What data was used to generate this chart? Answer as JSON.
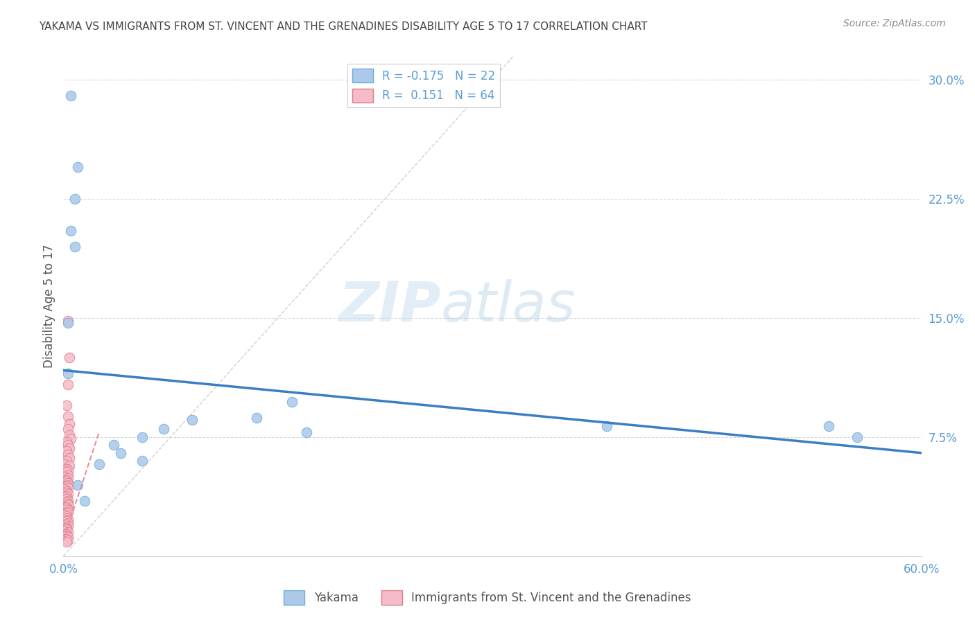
{
  "title": "YAKAMA VS IMMIGRANTS FROM ST. VINCENT AND THE GRENADINES DISABILITY AGE 5 TO 17 CORRELATION CHART",
  "source": "Source: ZipAtlas.com",
  "ylabel": "Disability Age 5 to 17",
  "watermark_zip": "ZIP",
  "watermark_atlas": "atlas",
  "xlim": [
    0.0,
    0.6
  ],
  "ylim": [
    0.0,
    0.315
  ],
  "xticks": [
    0.0,
    0.1,
    0.2,
    0.3,
    0.4,
    0.5,
    0.6
  ],
  "xticklabels": [
    "0.0%",
    "",
    "",
    "",
    "",
    "",
    "60.0%"
  ],
  "yticks_right": [
    0.075,
    0.15,
    0.225,
    0.3
  ],
  "yticklabels_right": [
    "7.5%",
    "15.0%",
    "22.5%",
    "30.0%"
  ],
  "legend_label1": "R = -0.175   N = 22",
  "legend_label2": "R =  0.151   N = 64",
  "series1_label": "Yakama",
  "series2_label": "Immigrants from St. Vincent and the Grenadines",
  "series1_color": "#adc9ea",
  "series2_color": "#f5bbc8",
  "series1_edge_color": "#6aaed6",
  "series2_edge_color": "#e07b8a",
  "trendline1_color": "#3a7fc1",
  "trendline2_color": "#e8919e",
  "diagonal_color": "#d0d0d0",
  "grid_color": "#d8d8d8",
  "title_color": "#444444",
  "axis_label_color": "#5b9bd5",
  "source_color": "#888888",
  "yakama_x": [
    0.005,
    0.01,
    0.008,
    0.005,
    0.008,
    0.003,
    0.003,
    0.16,
    0.135,
    0.38,
    0.535,
    0.555,
    0.17,
    0.09,
    0.055,
    0.04,
    0.025,
    0.035,
    0.055,
    0.07,
    0.01,
    0.015
  ],
  "yakama_y": [
    0.29,
    0.245,
    0.225,
    0.205,
    0.195,
    0.147,
    0.115,
    0.097,
    0.087,
    0.082,
    0.082,
    0.075,
    0.078,
    0.086,
    0.075,
    0.065,
    0.058,
    0.07,
    0.06,
    0.08,
    0.045,
    0.035
  ],
  "svgr_x": [
    0.003,
    0.004,
    0.003,
    0.002,
    0.003,
    0.004,
    0.003,
    0.004,
    0.005,
    0.002,
    0.003,
    0.004,
    0.002,
    0.003,
    0.004,
    0.002,
    0.001,
    0.004,
    0.002,
    0.003,
    0.002,
    0.003,
    0.001,
    0.003,
    0.002,
    0.002,
    0.003,
    0.003,
    0.002,
    0.003,
    0.001,
    0.002,
    0.002,
    0.003,
    0.002,
    0.001,
    0.002,
    0.003,
    0.002,
    0.003,
    0.003,
    0.002,
    0.002,
    0.003,
    0.003,
    0.002,
    0.001,
    0.002,
    0.002,
    0.003,
    0.002,
    0.003,
    0.002,
    0.003,
    0.002,
    0.002,
    0.001,
    0.003,
    0.002,
    0.002,
    0.003,
    0.002,
    0.003,
    0.002
  ],
  "svgr_y": [
    0.148,
    0.125,
    0.108,
    0.095,
    0.088,
    0.083,
    0.08,
    0.076,
    0.074,
    0.072,
    0.07,
    0.068,
    0.066,
    0.064,
    0.062,
    0.06,
    0.058,
    0.057,
    0.055,
    0.054,
    0.053,
    0.051,
    0.05,
    0.049,
    0.048,
    0.047,
    0.046,
    0.045,
    0.044,
    0.043,
    0.042,
    0.041,
    0.04,
    0.039,
    0.038,
    0.037,
    0.036,
    0.035,
    0.034,
    0.033,
    0.032,
    0.031,
    0.03,
    0.029,
    0.028,
    0.027,
    0.026,
    0.025,
    0.024,
    0.023,
    0.022,
    0.021,
    0.02,
    0.019,
    0.018,
    0.017,
    0.016,
    0.015,
    0.014,
    0.013,
    0.012,
    0.011,
    0.01,
    0.009
  ],
  "trend1_x0": 0.0,
  "trend1_y0": 0.117,
  "trend1_x1": 0.6,
  "trend1_y1": 0.065,
  "trend2_x0": 0.0,
  "trend2_y0": 0.01,
  "trend2_x1": 0.025,
  "trend2_y1": 0.078
}
